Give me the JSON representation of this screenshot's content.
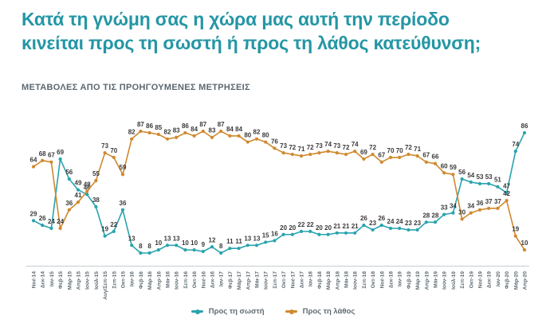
{
  "header": {
    "title_line1": "Κατά τη γνώμη σας η χώρα μας αυτή την περίοδο",
    "title_line2": "κινείται προς τη σωστή ή προς τη λάθος κατεύθυνση;",
    "subtitle": "ΜΕΤΑΒΟΛΕΣ ΑΠΟ ΤΙΣ ΠΡΟΗΓΟΥΜΕΝΕΣ ΜΕΤΡΗΣΕΙΣ"
  },
  "colors": {
    "title": "#2496a5",
    "subtitle": "#5b6770",
    "axis_line": "#c8cdd0",
    "tick_label": "#5d6a72",
    "value_label": "#3a3a3a",
    "background": "#ffffff"
  },
  "chart_data": {
    "type": "line",
    "title": "Κατά τη γνώμη σας η χώρα μας αυτή την περίοδο κινείται προς τη σωστή ή προς τη λάθος κατεύθυνση;",
    "subtitle": "ΜΕΤΑΒΟΛΕΣ ΑΠΟ ΤΙΣ ΠΡΟΗΓΟΥΜΕΝΕΣ ΜΕΤΡΗΣΕΙΣ",
    "xlabel": "",
    "ylabel": "",
    "ylim": [
      0,
      95
    ],
    "grid": false,
    "point_labels": true,
    "legend_position": "bottom",
    "categories": [
      "Νοέ-14",
      "Δεκ-14",
      "Ιαν-15",
      "Φεβ-15",
      "Μάρ-15",
      "Απρ-15",
      "Ιούν-15",
      "Ιούλ-15",
      "Αυγ/Σεπ-15",
      "Σεπ-15",
      "Οκτ-15",
      "Ιαν-16",
      "Φεβ-16",
      "Μάρ-16",
      "Απρ-16",
      "Μάι-16",
      "Ιούν-16",
      "Σεπ-16",
      "Οκτ-16",
      "Νοέ-16",
      "Δεκ-16",
      "Ιαν-17",
      "Φεβ-17",
      "Μάρ-17",
      "Απρ-17",
      "Μάι-17",
      "Ιούν-17",
      "Σεπ-17",
      "Οκτ-17",
      "Νοέ-17",
      "Δεκ-17",
      "Ιαν-18",
      "Φεβ-18",
      "Μάρ-18",
      "Απρ-18",
      "Μάι-18",
      "Ιούν-18",
      "Σεπ-18",
      "Οκτ-18",
      "Νοέ-18",
      "Δεκ-18",
      "Ιαν-19",
      "Φεβ-19",
      "Μάρ-19",
      "Απρ-19",
      "Μάι-19",
      "Ιούν-19",
      "Ιούλ-19",
      "Σεπ-19",
      "Οκτ-19",
      "Νοέ-19",
      "Δεκ-19",
      "Ιαν-20",
      "Φεβ-20",
      "Μάρ-20",
      "Απρ-20"
    ],
    "series": [
      {
        "name": "Προς τη σωστή",
        "color": "#29a3af",
        "values": [
          29,
          26,
          24,
          69,
          56,
          49,
          46,
          38,
          19,
          22,
          36,
          13,
          8,
          8,
          10,
          13,
          13,
          10,
          10,
          9,
          12,
          8,
          11,
          11,
          13,
          13,
          15,
          16,
          20,
          20,
          22,
          22,
          20,
          20,
          21,
          21,
          21,
          26,
          23,
          26,
          24,
          24,
          23,
          23,
          28,
          28,
          33,
          34,
          56,
          54,
          53,
          53,
          51,
          47,
          74,
          86
        ]
      },
      {
        "name": "Προς τη λάθος",
        "color": "#d0892e",
        "values": [
          64,
          68,
          67,
          24,
          36,
          41,
          48,
          55,
          73,
          70,
          59,
          82,
          87,
          86,
          85,
          82,
          83,
          86,
          84,
          87,
          83,
          87,
          84,
          84,
          80,
          82,
          80,
          76,
          73,
          72,
          71,
          72,
          73,
          74,
          73,
          72,
          74,
          69,
          72,
          67,
          70,
          70,
          72,
          71,
          67,
          66,
          60,
          59,
          30,
          34,
          36,
          37,
          37,
          42,
          19,
          10
        ]
      }
    ]
  }
}
